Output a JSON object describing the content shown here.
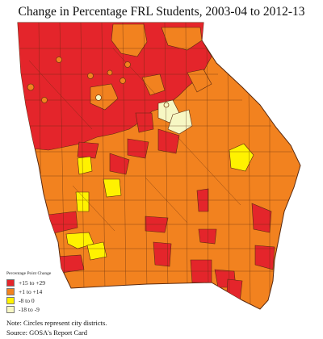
{
  "title": "Change in Percentage FRL Students, 2003-04 to 2012-13",
  "colors": {
    "high": "#e4252b",
    "mid": "#f2821f",
    "low": "#fff200",
    "lowest": "#f7f7c4",
    "border": "#5a2a10"
  },
  "legend": {
    "title": "Percentage Point Change",
    "items": [
      {
        "label": "+15 to +29",
        "color": "#e4252b"
      },
      {
        "label": "+1 to +14",
        "color": "#f2821f"
      },
      {
        "label": "-8 to 0",
        "color": "#fff200"
      },
      {
        "label": "-18 to -9",
        "color": "#f7f7c4"
      }
    ]
  },
  "notes": {
    "line1": "Note: Circles represent city districts.",
    "line2": "Source: GOSA's Report Card"
  }
}
